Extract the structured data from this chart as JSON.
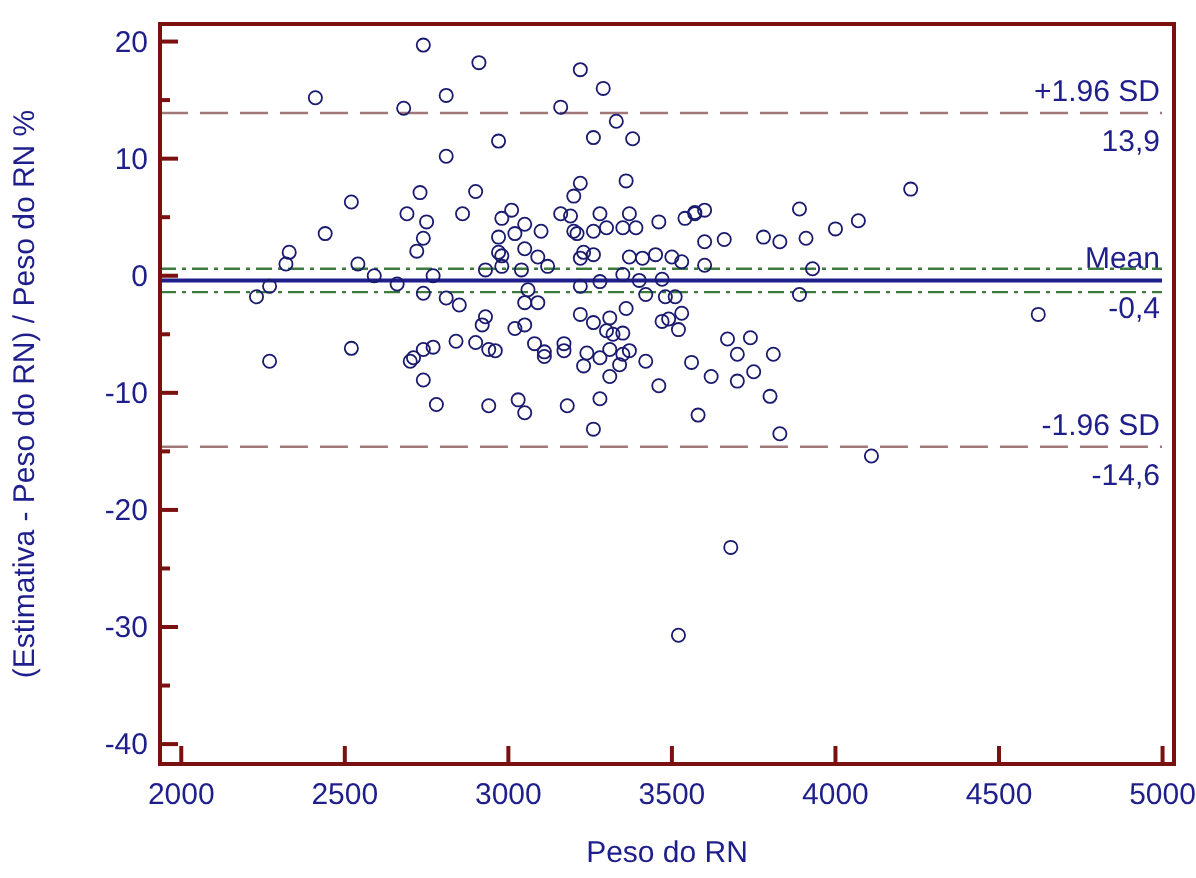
{
  "chart_data": {
    "type": "scatter",
    "xlabel": "Peso do RN",
    "ylabel": "(Estimativa - Peso do RN) / Peso do RN %",
    "xlim": [
      1935,
      5035
    ],
    "ylim": [
      -41.7,
      21.5
    ],
    "xticks": [
      2000,
      2500,
      3000,
      3500,
      4000,
      4500,
      5000
    ],
    "yticks": [
      -40,
      {
        "value": -35,
        "label": null
      },
      -30,
      {
        "value": -25,
        "label": null
      },
      -20,
      {
        "value": -15,
        "label": null
      },
      -10,
      {
        "value": -5,
        "label": null
      },
      0,
      {
        "value": 5,
        "label": null
      },
      10,
      {
        "value": 15,
        "label": null
      },
      20
    ],
    "grid": false,
    "marker": "circle",
    "series": [
      {
        "color": "#1a1a6e",
        "x": [
          2740,
          2910,
          2410,
          2680,
          2810,
          3220,
          3290,
          3160,
          3330,
          3260,
          3380,
          2970,
          2810,
          3360,
          3220,
          3200,
          2520,
          2730,
          2900,
          2690,
          2750,
          2860,
          2440,
          2740,
          2720,
          2330,
          2320,
          2540,
          2590,
          2270,
          2230,
          2660,
          2740,
          2770,
          2810,
          2850,
          2930,
          2980,
          3010,
          2970,
          3020,
          3050,
          3100,
          2980,
          2970,
          3050,
          3090,
          3120,
          3040,
          2980,
          3060,
          3050,
          3090,
          2930,
          2920,
          3020,
          3050,
          2840,
          2900,
          2940,
          2960,
          2770,
          2740,
          2710,
          2700,
          2520,
          2270,
          3080,
          3110,
          3110,
          3170,
          3170,
          2740,
          3160,
          3190,
          3200,
          3210,
          3280,
          3300,
          3260,
          3370,
          3350,
          3390,
          3230,
          3260,
          3220,
          3370,
          3410,
          3450,
          3500,
          3530,
          3460,
          3540,
          3570,
          3350,
          3400,
          3470,
          3220,
          3280,
          3420,
          3480,
          3220,
          3260,
          3310,
          3360,
          3300,
          3320,
          3350,
          3510,
          3490,
          3470,
          3520,
          3530,
          3240,
          3280,
          3310,
          3350,
          3370,
          3340,
          3230,
          3420,
          3560,
          3460,
          3310,
          2780,
          2940,
          3030,
          3050,
          3180,
          3280,
          3260,
          3520,
          3580,
          4230,
          3890,
          4000,
          4070,
          3910,
          3930,
          3890,
          3780,
          3830,
          3600,
          3660,
          3600,
          3570,
          3600,
          4620,
          3670,
          3740,
          3700,
          3810,
          3750,
          3700,
          3620,
          3800,
          3830,
          4110,
          3680
        ],
        "values": [
          19.7,
          18.2,
          15.2,
          14.3,
          15.4,
          17.6,
          16.0,
          14.4,
          13.2,
          11.8,
          11.7,
          11.5,
          10.2,
          8.1,
          7.9,
          6.8,
          6.3,
          7.1,
          7.2,
          5.3,
          4.6,
          5.3,
          3.6,
          3.2,
          2.1,
          2.0,
          1.0,
          1.0,
          0.0,
          -0.9,
          -1.8,
          -0.7,
          -1.5,
          0.0,
          -1.9,
          -2.5,
          0.5,
          4.9,
          5.6,
          3.3,
          3.6,
          4.4,
          3.8,
          1.7,
          2.0,
          2.3,
          1.6,
          0.8,
          0.5,
          0.8,
          -1.2,
          -2.3,
          -2.3,
          -3.5,
          -4.2,
          -4.5,
          -4.2,
          -5.6,
          -5.7,
          -6.3,
          -6.4,
          -6.1,
          -6.3,
          -7.0,
          -7.3,
          -6.2,
          -7.3,
          -5.8,
          -6.5,
          -6.9,
          -5.8,
          -6.4,
          -8.9,
          5.3,
          5.1,
          3.8,
          3.6,
          5.3,
          4.1,
          3.8,
          5.3,
          4.1,
          4.1,
          2.0,
          1.8,
          1.5,
          1.6,
          1.5,
          1.8,
          1.6,
          1.2,
          4.6,
          4.9,
          5.4,
          0.1,
          -0.4,
          -0.3,
          -0.9,
          -0.5,
          -1.6,
          -1.8,
          -3.3,
          -4.0,
          -3.6,
          -2.8,
          -4.7,
          -5.0,
          -4.9,
          -1.8,
          -3.7,
          -3.9,
          -4.6,
          -3.2,
          -6.6,
          -7.0,
          -6.3,
          -6.7,
          -6.4,
          -7.6,
          -7.7,
          -7.3,
          -7.4,
          -9.4,
          -8.6,
          -11.0,
          -11.1,
          -10.6,
          -11.7,
          -11.1,
          -10.5,
          -13.1,
          -30.7,
          -11.9,
          7.4,
          5.7,
          4.0,
          4.7,
          3.2,
          0.6,
          -1.6,
          3.3,
          2.9,
          2.9,
          3.1,
          0.9,
          5.3,
          5.6,
          -3.3,
          -5.4,
          -5.3,
          -6.7,
          -6.7,
          -8.2,
          -9.0,
          -8.6,
          -10.3,
          -13.5,
          -15.4,
          -23.2
        ]
      }
    ],
    "ref_lines": [
      {
        "axis": "y",
        "value": 13.9,
        "label": "+1.96 SD",
        "color": "#a07878",
        "line_style": "dashed"
      },
      {
        "axis": "y",
        "value": -0.4,
        "label": "Mean",
        "color": "#1f1f8c",
        "line_style": "solid"
      },
      {
        "axis": "y",
        "value": -14.6,
        "label": "-1.96 SD",
        "color": "#a07878",
        "line_style": "dashed"
      },
      {
        "axis": "y",
        "value": 0.6,
        "color": "#3d7a3d",
        "line_style": "dashdot"
      },
      {
        "axis": "y",
        "value": -1.4,
        "color": "#3d7a3d",
        "line_style": "dashdot"
      }
    ],
    "annotations": [
      {
        "text": "13,9",
        "y": 13.9
      },
      {
        "text": "-0,4",
        "y": -0.4
      },
      {
        "text": "-14,6",
        "y": -14.6
      }
    ]
  }
}
